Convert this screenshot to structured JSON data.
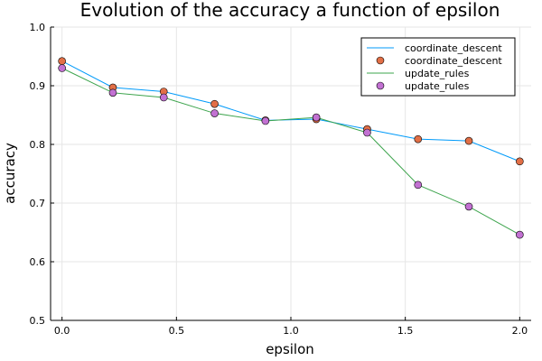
{
  "chart_data": {
    "type": "line",
    "title": "Evolution of the accuracy a function of epsilon",
    "xlabel": "epsilon",
    "ylabel": "accuracy",
    "xlim": [
      -0.05,
      2.05
    ],
    "ylim": [
      0.5,
      1.0
    ],
    "xticks": [
      0.0,
      0.5,
      1.0,
      1.5,
      2.0
    ],
    "xtick_labels": [
      "0.0",
      "0.5",
      "1.0",
      "1.5",
      "2.0"
    ],
    "yticks": [
      0.5,
      0.6,
      0.7,
      0.8,
      0.9,
      1.0
    ],
    "ytick_labels": [
      "0.5",
      "0.6",
      "0.7",
      "0.8",
      "0.9",
      "1.0"
    ],
    "grid": true,
    "legend_position": "top-right",
    "x": [
      0.0,
      0.2222,
      0.4444,
      0.6667,
      0.8889,
      1.1111,
      1.3333,
      1.5556,
      1.7778,
      2.0
    ],
    "series": [
      {
        "name": "coordinate_descent",
        "values": [
          0.942,
          0.897,
          0.89,
          0.869,
          0.841,
          0.843,
          0.826,
          0.809,
          0.806,
          0.771
        ],
        "line_color": "#009af9",
        "marker_color": "#e26f46"
      },
      {
        "name": "update_rules",
        "values": [
          0.93,
          0.888,
          0.88,
          0.853,
          0.84,
          0.846,
          0.82,
          0.731,
          0.694,
          0.646
        ],
        "line_color": "#3da44d",
        "marker_color": "#c271d2"
      }
    ]
  }
}
